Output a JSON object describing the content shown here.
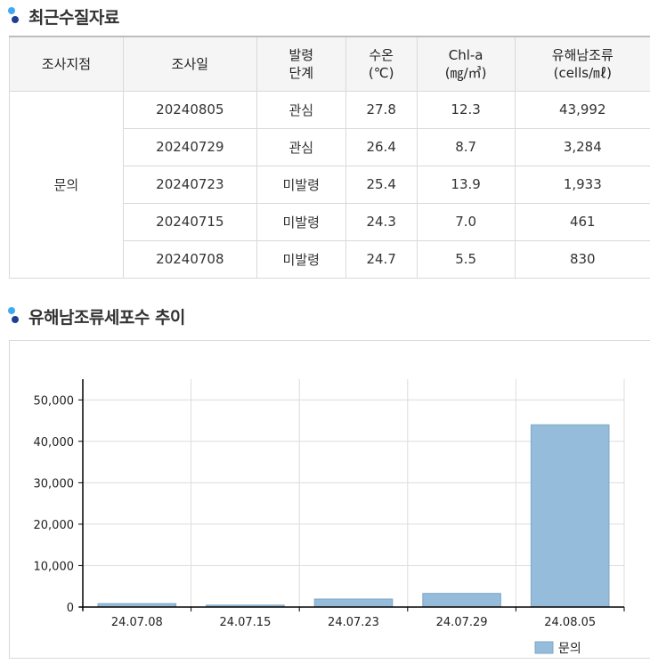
{
  "section1": {
    "title": "최근수질자료",
    "icon": "bullet-dots-icon"
  },
  "table": {
    "headers": [
      [
        "조사지점"
      ],
      [
        "조사일"
      ],
      [
        "발령",
        "단계"
      ],
      [
        "수온",
        "(℃)"
      ],
      [
        "Chl-a",
        "(㎎/㎥)"
      ],
      [
        "유해남조류",
        "(cells/㎖)"
      ]
    ],
    "site": "문의",
    "rows": [
      [
        "20240805",
        "관심",
        "27.8",
        "12.3",
        "43,992"
      ],
      [
        "20240729",
        "관심",
        "26.4",
        "8.7",
        "3,284"
      ],
      [
        "20240723",
        "미발령",
        "25.4",
        "13.9",
        "1,933"
      ],
      [
        "20240715",
        "미발령",
        "24.3",
        "7.0",
        "461"
      ],
      [
        "20240708",
        "미발령",
        "24.7",
        "5.5",
        "830"
      ]
    ]
  },
  "section2": {
    "title": "유해남조류세포수 추이",
    "icon": "bullet-dots-icon"
  },
  "chart_data": {
    "type": "bar",
    "categories": [
      "24.07.08",
      "24.07.15",
      "24.07.23",
      "24.07.29",
      "24.08.05"
    ],
    "series": [
      {
        "name": "문의",
        "values": [
          830,
          461,
          1933,
          3284,
          43992
        ],
        "color": "#95bcdb"
      }
    ],
    "yticks": [
      0,
      10000,
      20000,
      30000,
      40000,
      50000
    ],
    "ytick_labels": [
      "0",
      "10,000",
      "20,000",
      "30,000",
      "40,000",
      "50,000"
    ],
    "ylim": [
      0,
      55000
    ],
    "grid": true,
    "legend_position": "bottom-right",
    "title": "",
    "xlabel": "",
    "ylabel": ""
  }
}
